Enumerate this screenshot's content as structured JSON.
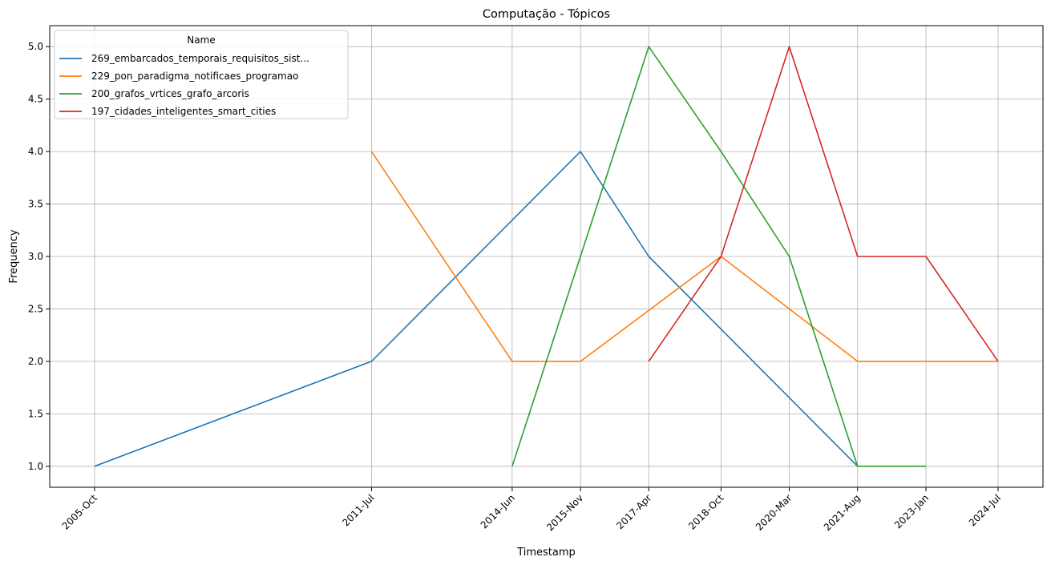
{
  "chart_data": {
    "type": "line",
    "title": "Computação - Tópicos",
    "xlabel": "Timestamp",
    "ylabel": "Frequency",
    "categories": [
      "2005-Oct",
      "2011-Jul",
      "2014-Jun",
      "2015-Nov",
      "2017-Apr",
      "2018-Oct",
      "2020-Mar",
      "2021-Aug",
      "2023-Jan",
      "2024-Jul"
    ],
    "x_dates": [
      "2005-10-01",
      "2011-07-01",
      "2014-06-01",
      "2015-11-01",
      "2017-04-01",
      "2018-10-01",
      "2020-03-01",
      "2021-08-01",
      "2023-01-01",
      "2024-07-01"
    ],
    "ylim": [
      0.8,
      5.2
    ],
    "yticks": [
      1.0,
      1.5,
      2.0,
      2.5,
      3.0,
      3.5,
      4.0,
      4.5,
      5.0
    ],
    "ytick_labels": [
      "1.0",
      "1.5",
      "2.0",
      "2.5",
      "3.0",
      "3.5",
      "4.0",
      "4.5",
      "5.0"
    ],
    "grid": true,
    "legend": {
      "title": "Name",
      "placement": "top-left"
    },
    "series": [
      {
        "name": "269_embarcados_temporais_requisitos_sist...",
        "color": "#1f77b4",
        "values": [
          1.0,
          2.0,
          null,
          4.0,
          3.0,
          null,
          null,
          1.0,
          null,
          null
        ]
      },
      {
        "name": "229_pon_paradigma_notificaes_programao",
        "color": "#ff7f0e",
        "values": [
          null,
          4.0,
          2.0,
          2.0,
          null,
          3.0,
          null,
          2.0,
          2.0,
          2.0
        ]
      },
      {
        "name": "200_grafos_vrtices_grafo_arcoris",
        "color": "#2ca02c",
        "values": [
          null,
          null,
          1.0,
          null,
          5.0,
          4.0,
          3.0,
          1.0,
          1.0,
          null
        ]
      },
      {
        "name": "197_cidades_inteligentes_smart_cities",
        "color": "#d62728",
        "values": [
          null,
          null,
          null,
          null,
          2.0,
          3.0,
          5.0,
          3.0,
          3.0,
          2.0
        ]
      }
    ]
  }
}
